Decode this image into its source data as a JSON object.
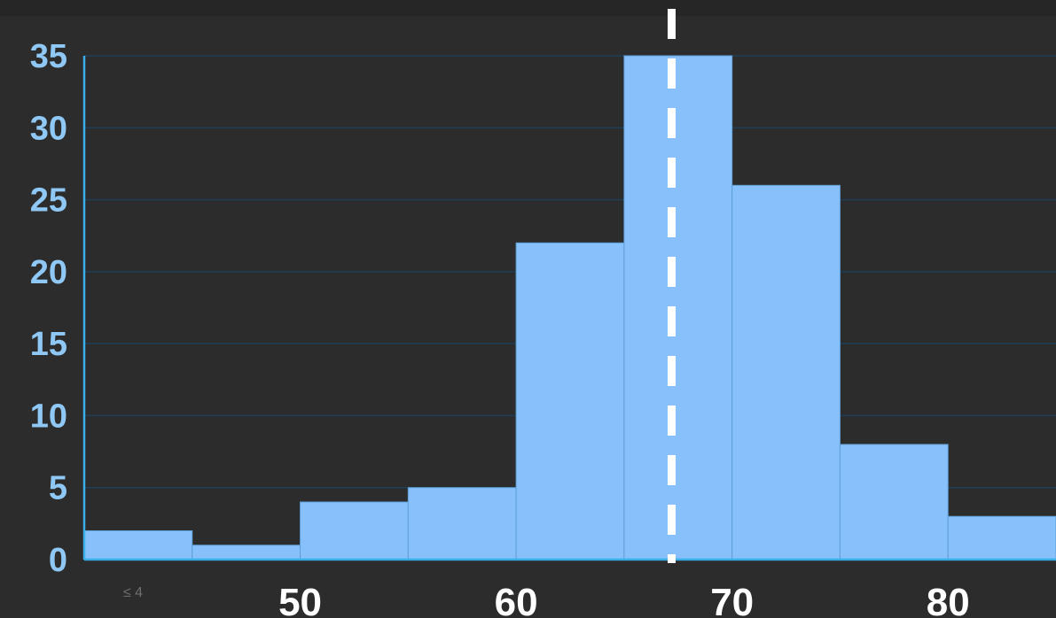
{
  "colors": {
    "background": "#262626",
    "plot_background": "#2c2c2c",
    "bar_fill": "#87c0fa",
    "bar_stroke": "#5f9fd6",
    "grid": "#1e3f57",
    "axis": "#3aaee6",
    "y_tick_text": "#8fc8f5",
    "x_tick_text": "#ffffff",
    "reference_line": "#ffffff"
  },
  "chart_data": {
    "type": "bar",
    "subtype": "histogram",
    "bin_edges": [
      40,
      45,
      50,
      55,
      60,
      65,
      70,
      75,
      80,
      85
    ],
    "values": [
      2,
      1,
      4,
      5,
      22,
      35,
      26,
      8,
      3
    ],
    "xlim": [
      40,
      85
    ],
    "ylim": [
      0,
      35
    ],
    "yticks": [
      "0",
      "5",
      "10",
      "15",
      "20",
      "25",
      "30",
      "35"
    ],
    "xticks": [
      {
        "value": 40,
        "label": "≤ 4"
      },
      {
        "value": 50,
        "label": "50"
      },
      {
        "value": 60,
        "label": "60"
      },
      {
        "value": 70,
        "label": "70"
      },
      {
        "value": 80,
        "label": "80"
      }
    ],
    "reference_line_x": 67.2,
    "reference_line_style": "dashed",
    "grid": true,
    "title": "",
    "xlabel": "",
    "ylabel": ""
  }
}
